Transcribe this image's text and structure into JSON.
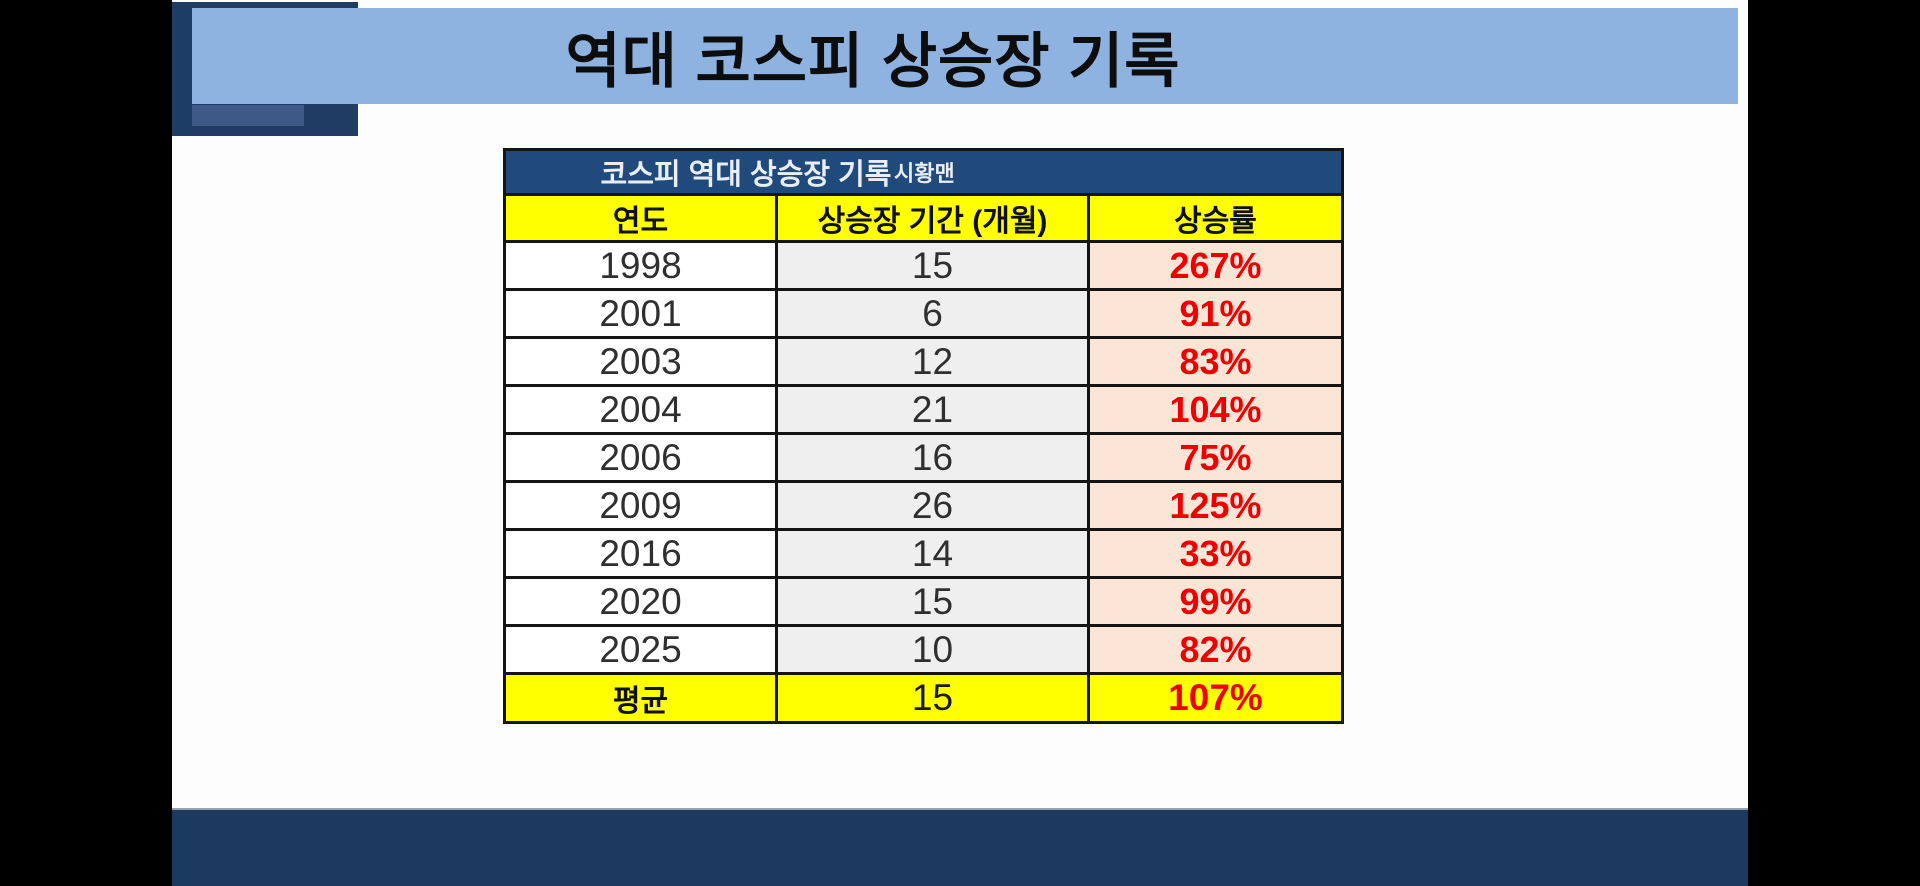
{
  "slide": {
    "title": "역대 코스피 상승장 기록"
  },
  "table": {
    "title": "코스피 역대 상승장 기록",
    "byline": "시황맨",
    "columns": [
      "연도",
      "상승장 기간 (개월)",
      "상승률"
    ],
    "rows": [
      [
        "1998",
        "15",
        "267%"
      ],
      [
        "2001",
        "6",
        "91%"
      ],
      [
        "2003",
        "12",
        "83%"
      ],
      [
        "2004",
        "21",
        "104%"
      ],
      [
        "2006",
        "16",
        "75%"
      ],
      [
        "2009",
        "26",
        "125%"
      ],
      [
        "2016",
        "14",
        "33%"
      ],
      [
        "2020",
        "15",
        "99%"
      ],
      [
        "2025",
        "10",
        "82%"
      ]
    ],
    "footer": [
      "평균",
      "15",
      "107%"
    ]
  },
  "colors": {
    "banner_blue": "#8eb3e0",
    "navy_square": "#1e3c64",
    "accent_bar": "#3c5a85",
    "table_header_navy": "#20497c",
    "column_header_yellow": "#ffff00",
    "year_col_white": "#ffffff",
    "period_col_gray": "#efefef",
    "gain_col_peach": "#fbe5d6",
    "gain_text_red": "#ee0000",
    "bottom_bar_navy": "#1c3a5f",
    "side_bar_black": "#000000"
  }
}
